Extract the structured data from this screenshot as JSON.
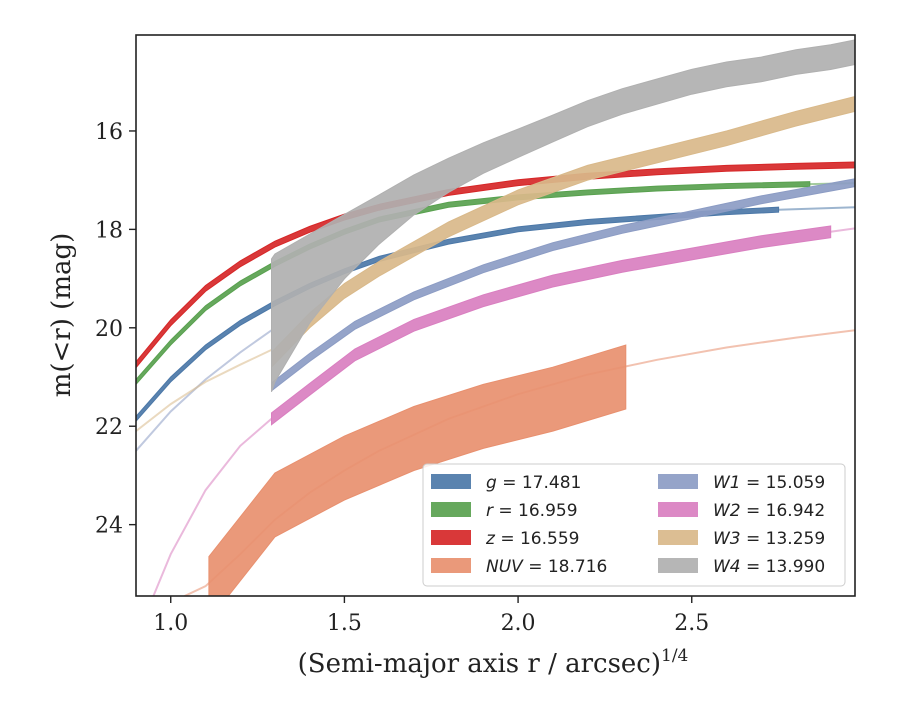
{
  "chart_data": {
    "type": "line",
    "xlabel": "(Semi-major axis r / arcsec)",
    "xlabel_exponent": "1/4",
    "ylabel": "m(<r) (mag)",
    "xlim": [
      0.9,
      2.97
    ],
    "ylim": [
      25.45,
      14.05
    ],
    "y_inverted": true,
    "x_ticks": [
      1.0,
      1.5,
      2.0,
      2.5
    ],
    "x_tick_labels": [
      "1.0",
      "1.5",
      "2.0",
      "2.5"
    ],
    "y_ticks": [
      16,
      18,
      20,
      22,
      24
    ],
    "y_tick_labels": [
      "16",
      "18",
      "20",
      "22",
      "24"
    ],
    "grid": false,
    "legend_position": "lower-right",
    "legend_columns": 2,
    "series": [
      {
        "name": "g = 17.481",
        "legend_var": "g",
        "legend_value": "17.481",
        "color": "#4c78a8",
        "band_x": [
          0.9,
          1.0,
          1.1,
          1.2,
          1.3,
          1.4,
          1.5,
          1.6,
          1.8,
          2.0,
          2.2,
          2.4,
          2.6,
          2.75
        ],
        "band_y": [
          21.85,
          21.05,
          20.4,
          19.9,
          19.5,
          19.15,
          18.85,
          18.6,
          18.25,
          18.0,
          17.85,
          17.75,
          17.65,
          17.6
        ],
        "band_halfwidth": 0.05,
        "ext_x": [
          2.75,
          2.97
        ],
        "ext_y": [
          17.6,
          17.55
        ]
      },
      {
        "name": "r = 16.959",
        "legend_var": "r",
        "legend_value": "16.959",
        "color": "#59a14f",
        "band_x": [
          0.9,
          1.0,
          1.1,
          1.2,
          1.3,
          1.4,
          1.5,
          1.6,
          1.8,
          2.0,
          2.2,
          2.4,
          2.6,
          2.84
        ],
        "band_y": [
          21.1,
          20.3,
          19.6,
          19.1,
          18.7,
          18.35,
          18.05,
          17.8,
          17.5,
          17.35,
          17.25,
          17.17,
          17.12,
          17.08
        ],
        "band_halfwidth": 0.05,
        "ext_x": [
          2.84,
          2.97
        ],
        "ext_y": [
          17.08,
          17.06
        ]
      },
      {
        "name": "z = 16.559",
        "legend_var": "z",
        "legend_value": "16.559",
        "color": "#d62728",
        "band_x": [
          0.9,
          1.0,
          1.1,
          1.2,
          1.3,
          1.4,
          1.5,
          1.6,
          1.8,
          2.0,
          2.2,
          2.4,
          2.6,
          2.8,
          2.97
        ],
        "band_y": [
          20.75,
          19.9,
          19.2,
          18.7,
          18.3,
          18.0,
          17.75,
          17.55,
          17.25,
          17.05,
          16.92,
          16.83,
          16.76,
          16.72,
          16.69
        ],
        "band_halfwidth": 0.06,
        "ext_x": [],
        "ext_y": []
      },
      {
        "name": "NUV = 18.716",
        "legend_var": "NUV",
        "legend_value": "18.716",
        "color": "#e8906f",
        "band_x": [
          1.11,
          1.3,
          1.5,
          1.7,
          1.9,
          2.1,
          2.31
        ],
        "band_y": [
          25.3,
          23.6,
          22.85,
          22.25,
          21.8,
          21.45,
          21.0
        ],
        "band_halfwidth": 0.65,
        "ext_x": [
          1.04,
          1.1,
          1.2,
          1.3,
          1.4,
          1.5,
          1.6,
          1.8,
          2.0,
          2.2,
          2.4,
          2.6,
          2.8,
          2.97
        ],
        "ext_y": [
          25.45,
          25.25,
          24.6,
          23.9,
          23.35,
          22.9,
          22.5,
          21.85,
          21.35,
          20.95,
          20.65,
          20.4,
          20.2,
          20.05
        ]
      },
      {
        "name": "W1 = 15.059",
        "legend_var": "W1",
        "legend_value": "15.059",
        "color": "#8c9cc4",
        "band_x": [
          1.29,
          1.4,
          1.53,
          1.7,
          1.9,
          2.1,
          2.3,
          2.5,
          2.7,
          2.97
        ],
        "band_y": [
          21.2,
          20.6,
          19.95,
          19.35,
          18.8,
          18.35,
          18.0,
          17.7,
          17.4,
          17.05
        ],
        "band_halfwidth": 0.08,
        "ext_x": [
          0.9,
          1.0,
          1.1,
          1.2,
          1.29
        ],
        "ext_y": [
          22.5,
          21.7,
          21.05,
          20.5,
          20.05
        ]
      },
      {
        "name": "W2 = 16.942",
        "legend_var": "W2",
        "legend_value": "16.942",
        "color": "#d97fc0",
        "band_x": [
          1.29,
          1.4,
          1.53,
          1.7,
          1.9,
          2.1,
          2.3,
          2.5,
          2.7,
          2.9
        ],
        "band_y": [
          21.85,
          21.25,
          20.55,
          19.95,
          19.45,
          19.05,
          18.75,
          18.5,
          18.25,
          18.05
        ],
        "band_halfwidth": 0.12,
        "ext_x": [
          0.95,
          1.0,
          1.1,
          1.2,
          1.29
        ],
        "ext_y": [
          25.45,
          24.6,
          23.3,
          22.4,
          21.85
        ],
        "ext2_x": [
          2.9,
          2.97
        ],
        "ext2_y": [
          18.05,
          17.98
        ]
      },
      {
        "name": "W3 = 13.259",
        "legend_var": "W3",
        "legend_value": "13.259",
        "color": "#d9b98a",
        "band_x": [
          1.29,
          1.4,
          1.5,
          1.6,
          1.8,
          2.0,
          2.2,
          2.4,
          2.6,
          2.8,
          2.97
        ],
        "band_y": [
          20.65,
          19.85,
          19.25,
          18.8,
          18.0,
          17.35,
          16.85,
          16.5,
          16.15,
          15.75,
          15.45
        ],
        "band_halfwidth": 0.15,
        "ext_x": [
          0.9,
          1.0,
          1.1,
          1.2,
          1.29
        ],
        "ext_y": [
          22.1,
          21.55,
          21.1,
          20.75,
          20.45
        ]
      },
      {
        "name": "W4 = 13.990",
        "legend_var": "W4",
        "legend_value": "13.990",
        "color": "#b0b0b0",
        "band_x": [
          1.29,
          1.3,
          1.4,
          1.5,
          1.6,
          1.7,
          1.8,
          1.9,
          2.0,
          2.1,
          2.2,
          2.3,
          2.4,
          2.5,
          2.6,
          2.7,
          2.8,
          2.9,
          2.97
        ],
        "band_y": [
          19.95,
          19.8,
          19.0,
          18.35,
          17.8,
          17.3,
          16.9,
          16.55,
          16.25,
          15.95,
          15.65,
          15.4,
          15.2,
          15.0,
          14.85,
          14.75,
          14.6,
          14.5,
          14.4
        ],
        "band_halfwidth_start": 1.35,
        "band_halfwidth_end": 0.25,
        "ext_x": [],
        "ext_y": []
      }
    ]
  }
}
